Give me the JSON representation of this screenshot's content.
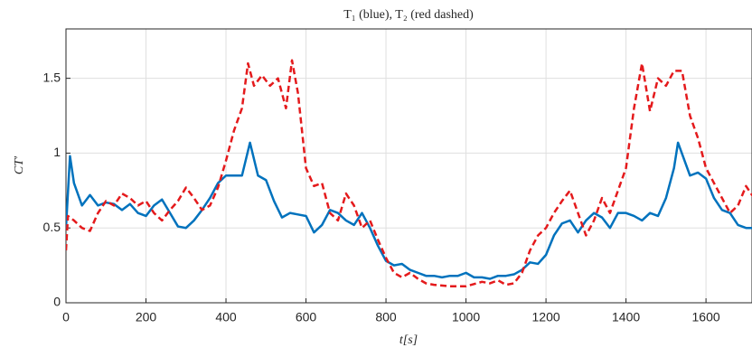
{
  "chart_data": {
    "type": "line",
    "title": "T₁ (blue), T₂ (red dashed)",
    "x_label": "t[s]",
    "y_label": "CT′",
    "xlim": [
      0,
      1715
    ],
    "ylim": [
      0,
      1.83
    ],
    "xticks": [
      0,
      200,
      400,
      600,
      800,
      1000,
      1200,
      1400,
      1600
    ],
    "yticks": [
      0,
      0.5,
      1,
      1.5
    ],
    "grid": true,
    "series": [
      {
        "name": "T₁",
        "color": "#0072bd",
        "dashed": false,
        "x": [
          0,
          10,
          20,
          40,
          60,
          80,
          100,
          120,
          140,
          160,
          180,
          200,
          220,
          240,
          260,
          280,
          300,
          320,
          340,
          360,
          380,
          400,
          420,
          440,
          460,
          480,
          500,
          520,
          540,
          560,
          580,
          600,
          620,
          640,
          660,
          680,
          700,
          720,
          740,
          760,
          780,
          800,
          820,
          840,
          860,
          880,
          900,
          920,
          940,
          960,
          980,
          1000,
          1020,
          1040,
          1060,
          1080,
          1100,
          1120,
          1140,
          1160,
          1180,
          1200,
          1220,
          1240,
          1260,
          1280,
          1300,
          1320,
          1340,
          1360,
          1380,
          1400,
          1420,
          1440,
          1460,
          1480,
          1500,
          1520,
          1530,
          1560,
          1580,
          1600,
          1620,
          1640,
          1660,
          1680,
          1700,
          1720
        ],
        "values": [
          0.5,
          0.98,
          0.8,
          0.65,
          0.72,
          0.65,
          0.67,
          0.66,
          0.62,
          0.66,
          0.6,
          0.58,
          0.65,
          0.69,
          0.6,
          0.51,
          0.5,
          0.55,
          0.62,
          0.7,
          0.8,
          0.85,
          0.85,
          0.85,
          1.07,
          0.85,
          0.82,
          0.68,
          0.57,
          0.6,
          0.59,
          0.58,
          0.47,
          0.52,
          0.62,
          0.6,
          0.55,
          0.52,
          0.6,
          0.5,
          0.38,
          0.28,
          0.25,
          0.26,
          0.22,
          0.2,
          0.18,
          0.18,
          0.17,
          0.18,
          0.18,
          0.2,
          0.17,
          0.17,
          0.16,
          0.18,
          0.18,
          0.19,
          0.22,
          0.27,
          0.26,
          0.32,
          0.45,
          0.53,
          0.55,
          0.47,
          0.55,
          0.6,
          0.57,
          0.5,
          0.6,
          0.6,
          0.58,
          0.55,
          0.6,
          0.58,
          0.7,
          0.9,
          1.07,
          0.85,
          0.87,
          0.83,
          0.7,
          0.62,
          0.6,
          0.52,
          0.5,
          0.5
        ]
      },
      {
        "name": "T₂",
        "color": "#e41a1c",
        "dashed": true,
        "x": [
          0,
          5,
          20,
          40,
          60,
          80,
          100,
          120,
          140,
          160,
          180,
          200,
          220,
          240,
          260,
          280,
          300,
          320,
          340,
          360,
          380,
          400,
          420,
          440,
          455,
          470,
          490,
          510,
          530,
          550,
          565,
          580,
          600,
          620,
          640,
          660,
          680,
          700,
          720,
          740,
          760,
          780,
          800,
          820,
          840,
          860,
          880,
          900,
          920,
          960,
          1000,
          1040,
          1060,
          1080,
          1100,
          1120,
          1140,
          1160,
          1180,
          1200,
          1220,
          1240,
          1260,
          1280,
          1300,
          1320,
          1340,
          1360,
          1380,
          1400,
          1420,
          1440,
          1460,
          1480,
          1500,
          1520,
          1540,
          1560,
          1580,
          1600,
          1620,
          1640,
          1660,
          1680,
          1700,
          1720
        ],
        "values": [
          0.35,
          0.58,
          0.55,
          0.5,
          0.48,
          0.6,
          0.68,
          0.65,
          0.73,
          0.7,
          0.65,
          0.68,
          0.6,
          0.55,
          0.62,
          0.68,
          0.77,
          0.7,
          0.62,
          0.65,
          0.77,
          0.95,
          1.15,
          1.3,
          1.6,
          1.45,
          1.52,
          1.45,
          1.5,
          1.3,
          1.62,
          1.4,
          0.9,
          0.78,
          0.8,
          0.6,
          0.55,
          0.73,
          0.65,
          0.5,
          0.55,
          0.42,
          0.3,
          0.2,
          0.17,
          0.2,
          0.16,
          0.13,
          0.12,
          0.11,
          0.11,
          0.14,
          0.13,
          0.15,
          0.12,
          0.13,
          0.2,
          0.35,
          0.45,
          0.5,
          0.6,
          0.68,
          0.75,
          0.6,
          0.45,
          0.55,
          0.7,
          0.6,
          0.75,
          0.9,
          1.3,
          1.6,
          1.28,
          1.5,
          1.45,
          1.55,
          1.55,
          1.25,
          1.1,
          0.9,
          0.8,
          0.7,
          0.6,
          0.65,
          0.78,
          0.7
        ]
      }
    ]
  }
}
